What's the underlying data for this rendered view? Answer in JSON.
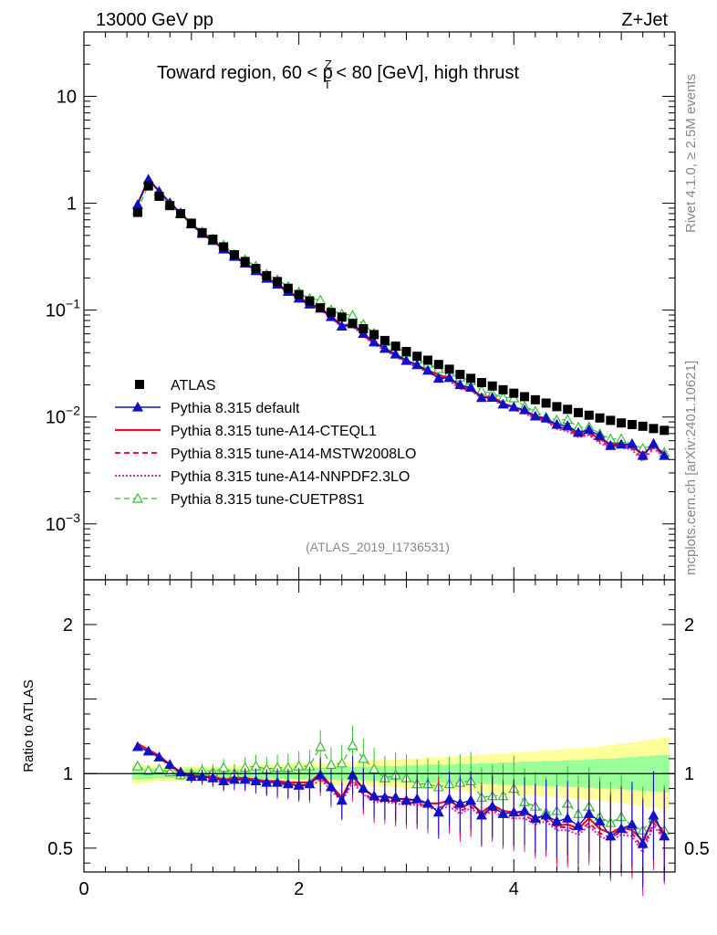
{
  "header": {
    "left": "13000 GeV pp",
    "right": "Z+Jet",
    "side_top": "Rivet 4.1.0, ≥ 2.5M events",
    "side_bottom": "mcplots.cern.ch [arXiv:2401.10621]",
    "analysis_id": "(ATLAS_2019_I1736531)"
  },
  "colors": {
    "atlas": "#000000",
    "default": "#1010c8",
    "cteql1": "#e8101e",
    "mstw": "#e8105a",
    "nnpdf": "#e020c0",
    "cuetp8s1": "#30c030",
    "band_inner": "#99ff99",
    "band_outer": "#ffff99"
  },
  "chart_data": {
    "type": "line",
    "title": "Toward region, 60 < p_T^Z < 80 [GeV], high thrust",
    "title_parts": {
      "before": "Toward region, 60 < p",
      "sup": "Z",
      "sub": "T",
      "after": " < 80 [GeV], high thrust"
    },
    "xlabel": "",
    "ylabel": "",
    "ratio_ylabel": "Ratio to ATLAS",
    "xlim": [
      0,
      5.5
    ],
    "ylim": [
      0.0003,
      40
    ],
    "ratio_ylim": [
      0.34,
      2.3
    ],
    "yscale": "log",
    "x_ticks": [
      "0",
      "2",
      "4"
    ],
    "y_ticks_main": [
      {
        "value": 10,
        "base": "10",
        "exp": ""
      },
      {
        "value": 1,
        "base": "1",
        "exp": ""
      },
      {
        "value": 0.1,
        "base": "10",
        "exp": "−1"
      },
      {
        "value": 0.01,
        "base": "10",
        "exp": "−2"
      },
      {
        "value": 0.001,
        "base": "10",
        "exp": "−3"
      }
    ],
    "y_ticks_ratio": [
      "2",
      "1",
      "0.5"
    ],
    "legend_position": "bottom-left",
    "legend": [
      {
        "key": "atlas",
        "label": "ATLAS"
      },
      {
        "key": "default",
        "label": "Pythia 8.315 default"
      },
      {
        "key": "cteql1",
        "label": "Pythia 8.315 tune-A14-CTEQL1"
      },
      {
        "key": "mstw",
        "label": "Pythia 8.315 tune-A14-MSTW2008LO"
      },
      {
        "key": "nnpdf",
        "label": "Pythia 8.315 tune-A14-NNPDF2.3LO"
      },
      {
        "key": "cuetp8s1",
        "label": "Pythia 8.315 tune-CUETP8S1"
      }
    ],
    "x": [
      0.5,
      0.6,
      0.7,
      0.8,
      0.9,
      1.0,
      1.1,
      1.2,
      1.3,
      1.4,
      1.5,
      1.6,
      1.7,
      1.8,
      1.9,
      2.0,
      2.1,
      2.2,
      2.3,
      2.4,
      2.5,
      2.6,
      2.7,
      2.8,
      2.9,
      3.0,
      3.1,
      3.2,
      3.3,
      3.4,
      3.5,
      3.6,
      3.7,
      3.8,
      3.9,
      4.0,
      4.1,
      4.2,
      4.3,
      4.4,
      4.5,
      4.6,
      4.7,
      4.8,
      4.9,
      5.0,
      5.1,
      5.2,
      5.3,
      5.4
    ],
    "series": [
      {
        "key": "atlas",
        "name": "ATLAS",
        "values": [
          0.82,
          1.45,
          1.16,
          0.95,
          0.8,
          0.65,
          0.53,
          0.46,
          0.39,
          0.33,
          0.285,
          0.245,
          0.21,
          0.185,
          0.16,
          0.14,
          0.122,
          0.105,
          0.095,
          0.086,
          0.075,
          0.067,
          0.059,
          0.052,
          0.046,
          0.041,
          0.037,
          0.034,
          0.031,
          0.028,
          0.025,
          0.023,
          0.021,
          0.0195,
          0.018,
          0.0167,
          0.0155,
          0.0145,
          0.0135,
          0.0125,
          0.0118,
          0.011,
          0.0104,
          0.0098,
          0.0093,
          0.0088,
          0.0085,
          0.0082,
          0.0078,
          0.0075
        ]
      },
      {
        "key": "atlas_band_inner",
        "values": [
          0.04,
          0.035,
          0.03,
          0.03,
          0.03,
          0.03,
          0.03,
          0.03,
          0.03,
          0.03,
          0.03,
          0.035,
          0.035,
          0.035,
          0.035,
          0.04,
          0.04,
          0.04,
          0.04,
          0.045,
          0.045,
          0.045,
          0.05,
          0.05,
          0.05,
          0.055,
          0.055,
          0.06,
          0.06,
          0.06,
          0.065,
          0.065,
          0.07,
          0.07,
          0.075,
          0.075,
          0.08,
          0.08,
          0.085,
          0.085,
          0.09,
          0.09,
          0.095,
          0.1,
          0.1,
          0.105,
          0.11,
          0.115,
          0.12,
          0.125
        ]
      },
      {
        "key": "atlas_band_outer",
        "values": [
          0.07,
          0.06,
          0.05,
          0.05,
          0.05,
          0.05,
          0.05,
          0.05,
          0.05,
          0.055,
          0.055,
          0.06,
          0.06,
          0.065,
          0.065,
          0.07,
          0.07,
          0.075,
          0.075,
          0.08,
          0.08,
          0.085,
          0.09,
          0.09,
          0.095,
          0.1,
          0.1,
          0.105,
          0.11,
          0.11,
          0.115,
          0.12,
          0.125,
          0.13,
          0.135,
          0.14,
          0.145,
          0.15,
          0.155,
          0.16,
          0.165,
          0.17,
          0.175,
          0.18,
          0.19,
          0.2,
          0.21,
          0.22,
          0.23,
          0.24
        ]
      },
      {
        "key": "default",
        "name": "Pythia 8.315 default",
        "ratio": [
          1.18,
          1.15,
          1.11,
          1.06,
          1.01,
          0.98,
          0.98,
          0.97,
          0.95,
          0.96,
          0.96,
          0.95,
          0.94,
          0.94,
          0.93,
          0.92,
          0.93,
          0.99,
          0.91,
          0.82,
          0.99,
          0.9,
          0.85,
          0.84,
          0.84,
          0.82,
          0.83,
          0.8,
          0.74,
          0.83,
          0.8,
          0.82,
          0.72,
          0.78,
          0.73,
          0.74,
          0.75,
          0.7,
          0.72,
          0.68,
          0.7,
          0.65,
          0.73,
          0.68,
          0.58,
          0.63,
          0.66,
          0.53,
          0.72,
          0.58
        ]
      },
      {
        "key": "cteql1",
        "name": "Pythia 8.315 tune-A14-CTEQL1",
        "ratio": [
          1.2,
          1.16,
          1.12,
          1.06,
          1.01,
          0.99,
          0.98,
          0.98,
          0.96,
          0.97,
          0.97,
          0.96,
          0.95,
          0.95,
          0.94,
          0.94,
          0.94,
          1.0,
          0.92,
          0.84,
          0.98,
          0.9,
          0.84,
          0.85,
          0.83,
          0.83,
          0.82,
          0.8,
          0.8,
          0.82,
          0.77,
          0.8,
          0.74,
          0.79,
          0.75,
          0.74,
          0.74,
          0.7,
          0.72,
          0.65,
          0.66,
          0.63,
          0.7,
          0.63,
          0.6,
          0.64,
          0.62,
          0.55,
          0.7,
          0.6
        ]
      },
      {
        "key": "mstw",
        "name": "Pythia 8.315 tune-A14-MSTW2008LO",
        "ratio": [
          1.19,
          1.15,
          1.11,
          1.05,
          1.0,
          0.98,
          0.97,
          0.97,
          0.94,
          0.96,
          0.96,
          0.95,
          0.94,
          0.93,
          0.93,
          0.92,
          0.92,
          0.98,
          0.9,
          0.82,
          0.96,
          0.87,
          0.82,
          0.83,
          0.81,
          0.81,
          0.8,
          0.78,
          0.77,
          0.8,
          0.75,
          0.78,
          0.72,
          0.76,
          0.73,
          0.72,
          0.72,
          0.68,
          0.69,
          0.64,
          0.64,
          0.61,
          0.67,
          0.6,
          0.57,
          0.61,
          0.6,
          0.5,
          0.67,
          0.58
        ]
      },
      {
        "key": "nnpdf",
        "name": "Pythia 8.315 tune-A14-NNPDF2.3LO",
        "ratio": [
          1.2,
          1.16,
          1.11,
          1.05,
          1.0,
          0.98,
          0.97,
          0.96,
          0.94,
          0.95,
          0.95,
          0.94,
          0.93,
          0.92,
          0.92,
          0.91,
          0.91,
          0.96,
          0.89,
          0.81,
          0.94,
          0.86,
          0.81,
          0.81,
          0.8,
          0.79,
          0.79,
          0.77,
          0.76,
          0.78,
          0.73,
          0.77,
          0.71,
          0.75,
          0.71,
          0.7,
          0.7,
          0.66,
          0.68,
          0.62,
          0.62,
          0.59,
          0.65,
          0.58,
          0.55,
          0.59,
          0.58,
          0.47,
          0.65,
          0.56
        ]
      },
      {
        "key": "cuetp8s1",
        "name": "Pythia 8.315 tune-CUETP8S1",
        "ratio": [
          1.05,
          1.02,
          1.03,
          1.01,
          0.99,
          1.0,
          1.02,
          1.01,
          1.04,
          1.0,
          1.04,
          1.05,
          1.03,
          1.04,
          1.04,
          1.05,
          1.05,
          1.18,
          1.06,
          1.07,
          1.19,
          1.1,
          1.03,
          0.97,
          0.99,
          0.97,
          0.93,
          0.93,
          0.91,
          0.93,
          0.94,
          0.95,
          0.84,
          0.85,
          0.85,
          0.9,
          0.81,
          0.78,
          0.74,
          0.75,
          0.8,
          0.73,
          0.78,
          0.71,
          0.67,
          0.71,
          0.65,
          0.62,
          0.7,
          0.62
        ]
      }
    ]
  }
}
